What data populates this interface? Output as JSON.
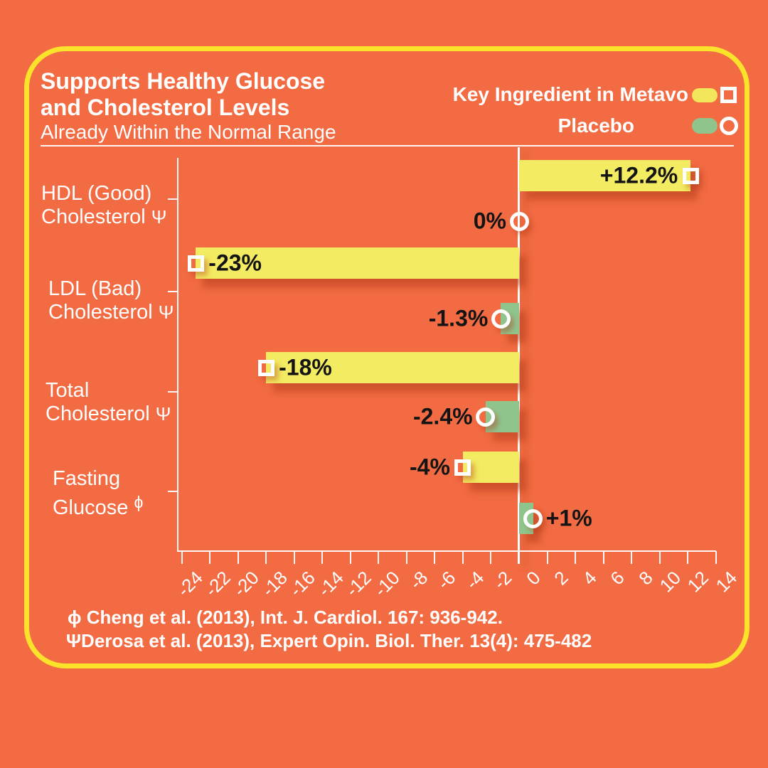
{
  "page": {
    "background_color": "#F26B42",
    "panel_border_color": "#FBE22B"
  },
  "header": {
    "title_line1": "Supports Healthy Glucose",
    "title_line2": "and Cholesterol Levels",
    "subtitle": "Already Within the Normal Range"
  },
  "legend": {
    "items": [
      {
        "label": "Key Ingredient in Metavo",
        "swatch_color": "#F2E75B",
        "marker": "square"
      },
      {
        "label": "Placebo",
        "swatch_color": "#90C48D",
        "marker": "circle"
      }
    ]
  },
  "footnotes": [
    "ϕ Cheng et al. (2013), Int. J. Cardiol. 167: 936-942.",
    "ΨDerosa et al. (2013), Expert Opin. Biol. Ther. 13(4): 475-482"
  ],
  "chart_data": {
    "type": "bar",
    "orientation": "horizontal",
    "title": "Supports Healthy Glucose and Cholesterol Levels",
    "subtitle": "Already Within the Normal Range",
    "unit": "%",
    "xlabel": "",
    "ylabel": "",
    "grid": false,
    "legend_position": "top-right",
    "xlim": [
      -24,
      14
    ],
    "xticks": [
      -24,
      -22,
      -20,
      -18,
      -16,
      -14,
      -12,
      -10,
      -8,
      -6,
      -4,
      -2,
      0,
      2,
      4,
      6,
      8,
      10,
      12,
      14
    ],
    "categories": [
      {
        "lines": [
          "HDL (Good)",
          "Cholesterol"
        ],
        "symbol": "Ψ",
        "symbol_raised": false
      },
      {
        "lines": [
          "LDL (Bad)",
          "Cholesterol"
        ],
        "symbol": "Ψ",
        "symbol_raised": false
      },
      {
        "lines": [
          "Total",
          "Cholesterol"
        ],
        "symbol": "Ψ",
        "symbol_raised": false
      },
      {
        "lines": [
          "Fasting",
          "Glucose"
        ],
        "symbol": "ϕ",
        "symbol_raised": true
      }
    ],
    "series": [
      {
        "name": "Key Ingredient in Metavo",
        "color": "#F3EB61",
        "marker": "square",
        "points": [
          {
            "value": 12.2,
            "label": "+12.2%",
            "label_pos": "inside-end"
          },
          {
            "value": -23,
            "label": "-23%",
            "label_pos": "inside-end"
          },
          {
            "value": -18,
            "label": "-18%",
            "label_pos": "inside-end"
          },
          {
            "value": -4,
            "label": "-4%",
            "label_pos": "outside-end"
          }
        ]
      },
      {
        "name": "Placebo",
        "color": "#90C48D",
        "marker": "circle",
        "points": [
          {
            "value": 0,
            "label": "0%",
            "label_pos": "outside-end"
          },
          {
            "value": -1.3,
            "label": "-1.3%",
            "label_pos": "outside-end"
          },
          {
            "value": -2.4,
            "label": "-2.4%",
            "label_pos": "outside-end"
          },
          {
            "value": 1,
            "label": "+1%",
            "label_pos": "outside-end"
          }
        ]
      }
    ]
  }
}
